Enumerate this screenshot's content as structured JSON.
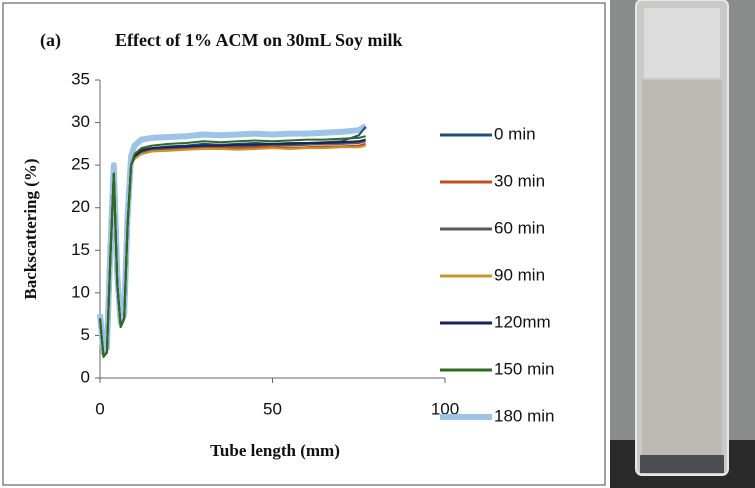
{
  "chart_data": {
    "type": "line",
    "panel_label": "(a)",
    "title": "Effect of 1% ACM on 30mL Soy milk",
    "x_label": "Tube length (mm)",
    "y_label": "Backscattering (%)",
    "x": [
      0,
      1,
      2,
      3,
      4,
      5,
      6,
      7,
      8,
      9,
      10,
      12,
      15,
      20,
      25,
      30,
      35,
      40,
      45,
      50,
      55,
      60,
      65,
      70,
      75,
      77
    ],
    "series": [
      {
        "name": "0 min",
        "color": "#1f4e79",
        "values": [
          7,
          2.5,
          3,
          14,
          24,
          11,
          6,
          7,
          18,
          25,
          26,
          26.8,
          27,
          27.2,
          27.3,
          27.5,
          27.4,
          27.5,
          27.6,
          27.5,
          27.6,
          27.6,
          27.7,
          27.8,
          28.5,
          29.5
        ]
      },
      {
        "name": "30 min",
        "color": "#c0501e",
        "values": [
          7,
          2.5,
          3,
          14,
          24,
          11,
          6,
          7,
          18,
          25,
          25.8,
          26.5,
          26.7,
          26.8,
          27,
          27,
          27.1,
          27,
          27.1,
          27.2,
          27,
          27.1,
          27.2,
          27.2,
          27.3,
          27.5
        ]
      },
      {
        "name": "60 min",
        "color": "#5a5a5a",
        "values": [
          7,
          2.5,
          3,
          14,
          24,
          11,
          6,
          7,
          18,
          25,
          26,
          26.6,
          26.9,
          27,
          27.1,
          27.2,
          27.3,
          27.2,
          27.3,
          27.4,
          27.3,
          27.4,
          27.5,
          27.5,
          27.6,
          27.8
        ]
      },
      {
        "name": "90 min",
        "color": "#c8962a",
        "values": [
          7,
          2.5,
          3,
          14,
          24,
          11,
          6,
          7,
          18,
          25,
          25.7,
          26.3,
          26.6,
          26.7,
          26.8,
          26.9,
          26.9,
          26.8,
          26.9,
          27,
          26.9,
          27,
          27,
          27.1,
          27.1,
          27.3
        ]
      },
      {
        "name": "120mm",
        "color": "#1a2060",
        "values": [
          7,
          2.5,
          3,
          14,
          24,
          11,
          6,
          7,
          18,
          25,
          26,
          26.7,
          27,
          27.1,
          27.2,
          27.3,
          27.3,
          27.4,
          27.4,
          27.5,
          27.5,
          27.6,
          27.6,
          27.7,
          27.8,
          28
        ]
      },
      {
        "name": "150 min",
        "color": "#2e6b1e",
        "values": [
          7,
          2.5,
          3,
          14,
          24,
          11,
          6,
          7,
          18,
          25,
          26.3,
          27,
          27.3,
          27.5,
          27.6,
          27.8,
          27.7,
          27.8,
          27.9,
          27.8,
          27.9,
          28,
          28,
          28.1,
          28.2,
          28.4
        ]
      },
      {
        "name": "180 min",
        "color": "#9dc3e6",
        "values": [
          7.5,
          3,
          3.5,
          15,
          25,
          12,
          6.5,
          7.5,
          19,
          26,
          27.3,
          28,
          28.2,
          28.3,
          28.4,
          28.6,
          28.5,
          28.6,
          28.7,
          28.6,
          28.7,
          28.7,
          28.8,
          28.9,
          29.1,
          29.6
        ]
      }
    ],
    "xlim": [
      0,
      100
    ],
    "xticks": [
      0,
      50,
      100
    ],
    "ylim": [
      0,
      35
    ],
    "yticks": [
      0,
      5,
      10,
      15,
      20,
      25,
      30,
      35
    ]
  }
}
